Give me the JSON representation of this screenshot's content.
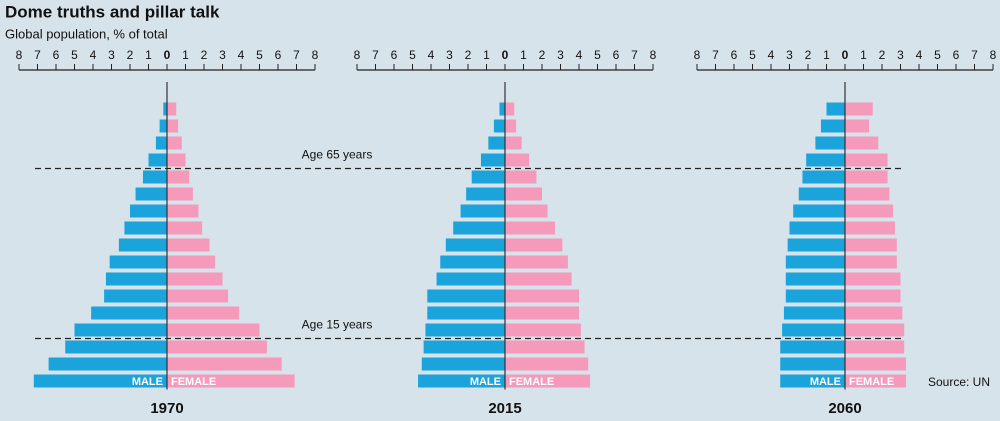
{
  "title": "Dome truths and pillar talk",
  "subtitle": "Global population, % of total",
  "source": "Source: UN",
  "annotations": [
    "Age 65 years",
    "Age 15 years"
  ],
  "chart_data": [
    {
      "type": "pyramid",
      "title": "1970",
      "xlim": [
        0,
        8
      ],
      "xticks": [
        0,
        1,
        2,
        3,
        4,
        5,
        6,
        7,
        8
      ],
      "series": [
        {
          "name": "MALE",
          "color": "#1ba3db",
          "values": [
            7.2,
            6.4,
            5.5,
            5.0,
            4.1,
            3.4,
            3.3,
            3.1,
            2.6,
            2.3,
            2.0,
            1.7,
            1.3,
            1.0,
            0.6,
            0.4,
            0.2
          ]
        },
        {
          "name": "FEMALE",
          "color": "#f59abb",
          "values": [
            6.9,
            6.2,
            5.4,
            5.0,
            3.9,
            3.3,
            3.0,
            2.6,
            2.3,
            1.9,
            1.7,
            1.4,
            1.2,
            1.0,
            0.8,
            0.6,
            0.5
          ]
        }
      ]
    },
    {
      "type": "pyramid",
      "title": "2015",
      "xlim": [
        0,
        8
      ],
      "xticks": [
        0,
        1,
        2,
        3,
        4,
        5,
        6,
        7,
        8
      ],
      "series": [
        {
          "name": "MALE",
          "color": "#1ba3db",
          "values": [
            4.7,
            4.5,
            4.4,
            4.3,
            4.2,
            4.2,
            3.7,
            3.5,
            3.2,
            2.8,
            2.4,
            2.1,
            1.8,
            1.3,
            0.9,
            0.6,
            0.3
          ]
        },
        {
          "name": "FEMALE",
          "color": "#f59abb",
          "values": [
            4.6,
            4.5,
            4.3,
            4.1,
            4.0,
            4.0,
            3.6,
            3.4,
            3.1,
            2.7,
            2.3,
            2.0,
            1.7,
            1.3,
            0.9,
            0.6,
            0.5
          ]
        }
      ]
    },
    {
      "type": "pyramid",
      "title": "2060",
      "xlim": [
        0,
        8
      ],
      "xticks": [
        0,
        1,
        2,
        3,
        4,
        5,
        6,
        7,
        8
      ],
      "series": [
        {
          "name": "MALE",
          "color": "#1ba3db",
          "values": [
            3.5,
            3.5,
            3.5,
            3.4,
            3.3,
            3.2,
            3.2,
            3.2,
            3.1,
            3.0,
            2.8,
            2.5,
            2.3,
            2.1,
            1.6,
            1.3,
            1.0
          ]
        },
        {
          "name": "FEMALE",
          "color": "#f59abb",
          "values": [
            3.3,
            3.3,
            3.2,
            3.2,
            3.1,
            3.0,
            3.0,
            2.8,
            2.8,
            2.7,
            2.6,
            2.4,
            2.3,
            2.3,
            1.8,
            1.3,
            1.5
          ]
        }
      ]
    }
  ]
}
